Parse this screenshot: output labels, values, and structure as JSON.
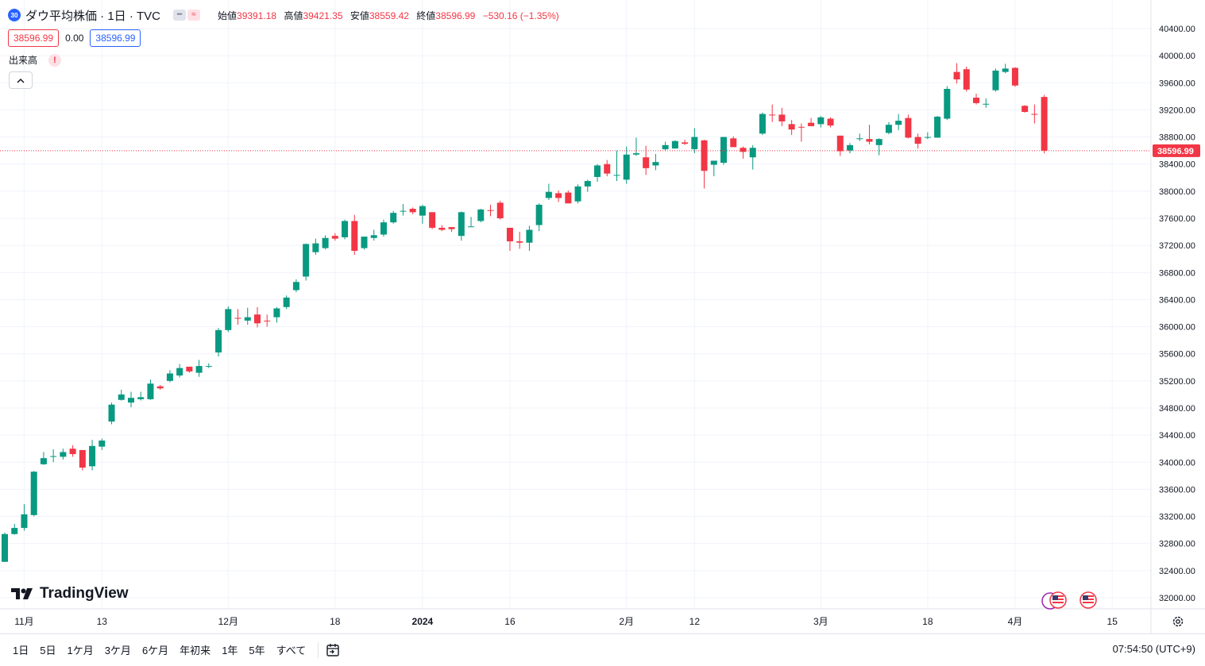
{
  "header": {
    "symbol_badge": "30",
    "title": "ダウ平均株価 · 1日 · TVC",
    "ohlc": {
      "open_label": "始値",
      "open": "39391.18",
      "high_label": "高値",
      "high": "39421.35",
      "low_label": "安値",
      "low": "38559.42",
      "close_label": "終値",
      "close": "38596.99",
      "change": "−530.16 (−1.35%)"
    },
    "sell_price": "38596.99",
    "spread": "0.00",
    "buy_price": "38596.99"
  },
  "indicator": {
    "volume_label": "出来高",
    "warning": "!"
  },
  "logo_text": "TradingView",
  "bottom_bar": {
    "ranges": [
      "1日",
      "5日",
      "1ケ月",
      "3ケ月",
      "6ケ月",
      "年初来",
      "1年",
      "5年",
      "すべて"
    ],
    "clock": "07:54:50 (UTC+9)"
  },
  "colors": {
    "up": "#089981",
    "down": "#f23645",
    "grid": "#f0f3fa",
    "accent": "#2962ff"
  },
  "icons": [
    "symbol-icon",
    "collapse-chevron-icon",
    "tradingview-logo-icon",
    "us-flag-icon",
    "calendar-range-icon",
    "settings-gear-icon"
  ],
  "chart_data": {
    "type": "candlestick",
    "title": "ダウ平均株価 · 1日 · TVC",
    "ylim": [
      31850,
      40600
    ],
    "y_ticks": [
      32000,
      32400,
      32800,
      33200,
      33600,
      34000,
      34400,
      34800,
      35200,
      35600,
      36000,
      36400,
      36800,
      37200,
      37600,
      38000,
      38400,
      38800,
      39200,
      39600,
      40000,
      40400
    ],
    "y_tick_labels": [
      "32000.00",
      "32400.00",
      "32800.00",
      "33200.00",
      "33600.00",
      "34000.00",
      "34400.00",
      "34800.00",
      "35200.00",
      "35600.00",
      "36000.00",
      "36400.00",
      "36800.00",
      "37200.00",
      "37600.00",
      "38000.00",
      "38400.00",
      "38800.00",
      "39200.00",
      "39600.00",
      "40000.00",
      "40400.00"
    ],
    "x_ticks": [
      {
        "label": "11月",
        "index": 2,
        "bold": false
      },
      {
        "label": "13",
        "index": 10,
        "bold": false
      },
      {
        "label": "12月",
        "index": 23,
        "bold": false
      },
      {
        "label": "18",
        "index": 34,
        "bold": false
      },
      {
        "label": "2024",
        "index": 43,
        "bold": true
      },
      {
        "label": "16",
        "index": 52,
        "bold": false
      },
      {
        "label": "2月",
        "index": 64,
        "bold": false
      },
      {
        "label": "12",
        "index": 71,
        "bold": false
      },
      {
        "label": "3月",
        "index": 84,
        "bold": false
      },
      {
        "label": "18",
        "index": 95,
        "bold": false
      },
      {
        "label": "4月",
        "index": 104,
        "bold": false
      },
      {
        "label": "15",
        "index": 114,
        "bold": false
      }
    ],
    "last_price": 38596.99,
    "last_price_label": "38596.99",
    "ohlc": [
      [
        32530,
        32960,
        32530,
        32940
      ],
      [
        32940,
        33090,
        32930,
        33030
      ],
      [
        33030,
        33380,
        32990,
        33230
      ],
      [
        33220,
        33870,
        33200,
        33860
      ],
      [
        33970,
        34150,
        33960,
        34060
      ],
      [
        34080,
        34190,
        34000,
        34090
      ],
      [
        34080,
        34200,
        34040,
        34150
      ],
      [
        34200,
        34250,
        34080,
        34120
      ],
      [
        34180,
        34180,
        33880,
        33920
      ],
      [
        33940,
        34330,
        33880,
        34240
      ],
      [
        34230,
        34350,
        34180,
        34320
      ],
      [
        34600,
        34880,
        34560,
        34850
      ],
      [
        34920,
        35070,
        34910,
        35000
      ],
      [
        34880,
        35040,
        34810,
        34950
      ],
      [
        34930,
        35040,
        34910,
        34960
      ],
      [
        34930,
        35220,
        34920,
        35160
      ],
      [
        35120,
        35140,
        35070,
        35090
      ],
      [
        35200,
        35360,
        35180,
        35310
      ],
      [
        35280,
        35450,
        35250,
        35390
      ],
      [
        35410,
        35410,
        35320,
        35340
      ],
      [
        35320,
        35510,
        35260,
        35420
      ],
      [
        35410,
        35460,
        35390,
        35420
      ],
      [
        35620,
        35980,
        35560,
        35950
      ],
      [
        35950,
        36300,
        35920,
        36260
      ],
      [
        36130,
        36260,
        36030,
        36120
      ],
      [
        36090,
        36280,
        36030,
        36140
      ],
      [
        36180,
        36290,
        35990,
        36050
      ],
      [
        36090,
        36180,
        36000,
        36080
      ],
      [
        36140,
        36290,
        36060,
        36270
      ],
      [
        36290,
        36460,
        36260,
        36430
      ],
      [
        36540,
        36700,
        36510,
        36660
      ],
      [
        36740,
        37230,
        36680,
        37220
      ],
      [
        37100,
        37300,
        37060,
        37230
      ],
      [
        37160,
        37350,
        37140,
        37310
      ],
      [
        37340,
        37380,
        37270,
        37300
      ],
      [
        37320,
        37580,
        37290,
        37560
      ],
      [
        37560,
        37650,
        37060,
        37120
      ],
      [
        37160,
        37330,
        37140,
        37330
      ],
      [
        37310,
        37430,
        37270,
        37350
      ],
      [
        37360,
        37580,
        37330,
        37540
      ],
      [
        37540,
        37710,
        37520,
        37680
      ],
      [
        37700,
        37810,
        37640,
        37710
      ],
      [
        37740,
        37760,
        37660,
        37690
      ],
      [
        37640,
        37800,
        37520,
        37780
      ],
      [
        37690,
        37690,
        37440,
        37460
      ],
      [
        37460,
        37500,
        37410,
        37430
      ],
      [
        37470,
        37470,
        37400,
        37440
      ],
      [
        37340,
        37700,
        37270,
        37690
      ],
      [
        37480,
        37620,
        37480,
        37480
      ],
      [
        37560,
        37740,
        37540,
        37730
      ],
      [
        37720,
        37800,
        37630,
        37710
      ],
      [
        37830,
        37860,
        37580,
        37600
      ],
      [
        37460,
        37460,
        37120,
        37260
      ],
      [
        37260,
        37400,
        37150,
        37240
      ],
      [
        37240,
        37490,
        37120,
        37430
      ],
      [
        37500,
        37820,
        37410,
        37800
      ],
      [
        37900,
        38110,
        37870,
        37990
      ],
      [
        37970,
        38010,
        37840,
        37900
      ],
      [
        37980,
        38010,
        37820,
        37820
      ],
      [
        37850,
        38100,
        37820,
        38070
      ],
      [
        38070,
        38170,
        37990,
        38150
      ],
      [
        38210,
        38400,
        38140,
        38380
      ],
      [
        38400,
        38460,
        38220,
        38260
      ],
      [
        38230,
        38600,
        38150,
        38240
      ],
      [
        38170,
        38660,
        38110,
        38540
      ],
      [
        38540,
        38790,
        38520,
        38560
      ],
      [
        38500,
        38670,
        38240,
        38340
      ],
      [
        38380,
        38550,
        38310,
        38430
      ],
      [
        38620,
        38730,
        38600,
        38680
      ],
      [
        38630,
        38750,
        38640,
        38740
      ],
      [
        38720,
        38760,
        38680,
        38700
      ],
      [
        38620,
        38930,
        38560,
        38800
      ],
      [
        38750,
        38760,
        38040,
        38300
      ],
      [
        38390,
        38430,
        38220,
        38450
      ],
      [
        38420,
        38800,
        38390,
        38800
      ],
      [
        38780,
        38810,
        38700,
        38650
      ],
      [
        38640,
        38660,
        38480,
        38580
      ],
      [
        38500,
        38680,
        38320,
        38640
      ],
      [
        38850,
        39160,
        38830,
        39140
      ],
      [
        39130,
        39280,
        39020,
        39120
      ],
      [
        39130,
        39230,
        38960,
        39030
      ],
      [
        38990,
        39050,
        38830,
        38910
      ],
      [
        38950,
        39000,
        38730,
        38940
      ],
      [
        39010,
        39080,
        38960,
        38960
      ],
      [
        38990,
        39110,
        38940,
        39090
      ],
      [
        39070,
        39090,
        38940,
        38970
      ],
      [
        38820,
        38820,
        38520,
        38590
      ],
      [
        38600,
        38710,
        38560,
        38680
      ],
      [
        38770,
        38850,
        38740,
        38780
      ],
      [
        38770,
        38980,
        38690,
        38730
      ],
      [
        38680,
        38780,
        38530,
        38770
      ],
      [
        38860,
        39020,
        38840,
        38980
      ],
      [
        38980,
        39140,
        38900,
        39040
      ],
      [
        39080,
        39130,
        38780,
        38790
      ],
      [
        38800,
        38850,
        38630,
        38700
      ],
      [
        38790,
        38870,
        38770,
        38800
      ],
      [
        38790,
        39110,
        38790,
        39100
      ],
      [
        39070,
        39550,
        39050,
        39510
      ],
      [
        39760,
        39890,
        39590,
        39650
      ],
      [
        39800,
        39840,
        39470,
        39500
      ],
      [
        39380,
        39440,
        39280,
        39300
      ],
      [
        39280,
        39370,
        39230,
        39290
      ],
      [
        39490,
        39810,
        39470,
        39780
      ],
      [
        39760,
        39880,
        39740,
        39810
      ],
      [
        39820,
        39830,
        39540,
        39560
      ],
      [
        39260,
        39270,
        39160,
        39170
      ],
      [
        39140,
        39280,
        39000,
        39130
      ],
      [
        39391.18,
        39421.35,
        38559.42,
        38596.99
      ]
    ]
  }
}
